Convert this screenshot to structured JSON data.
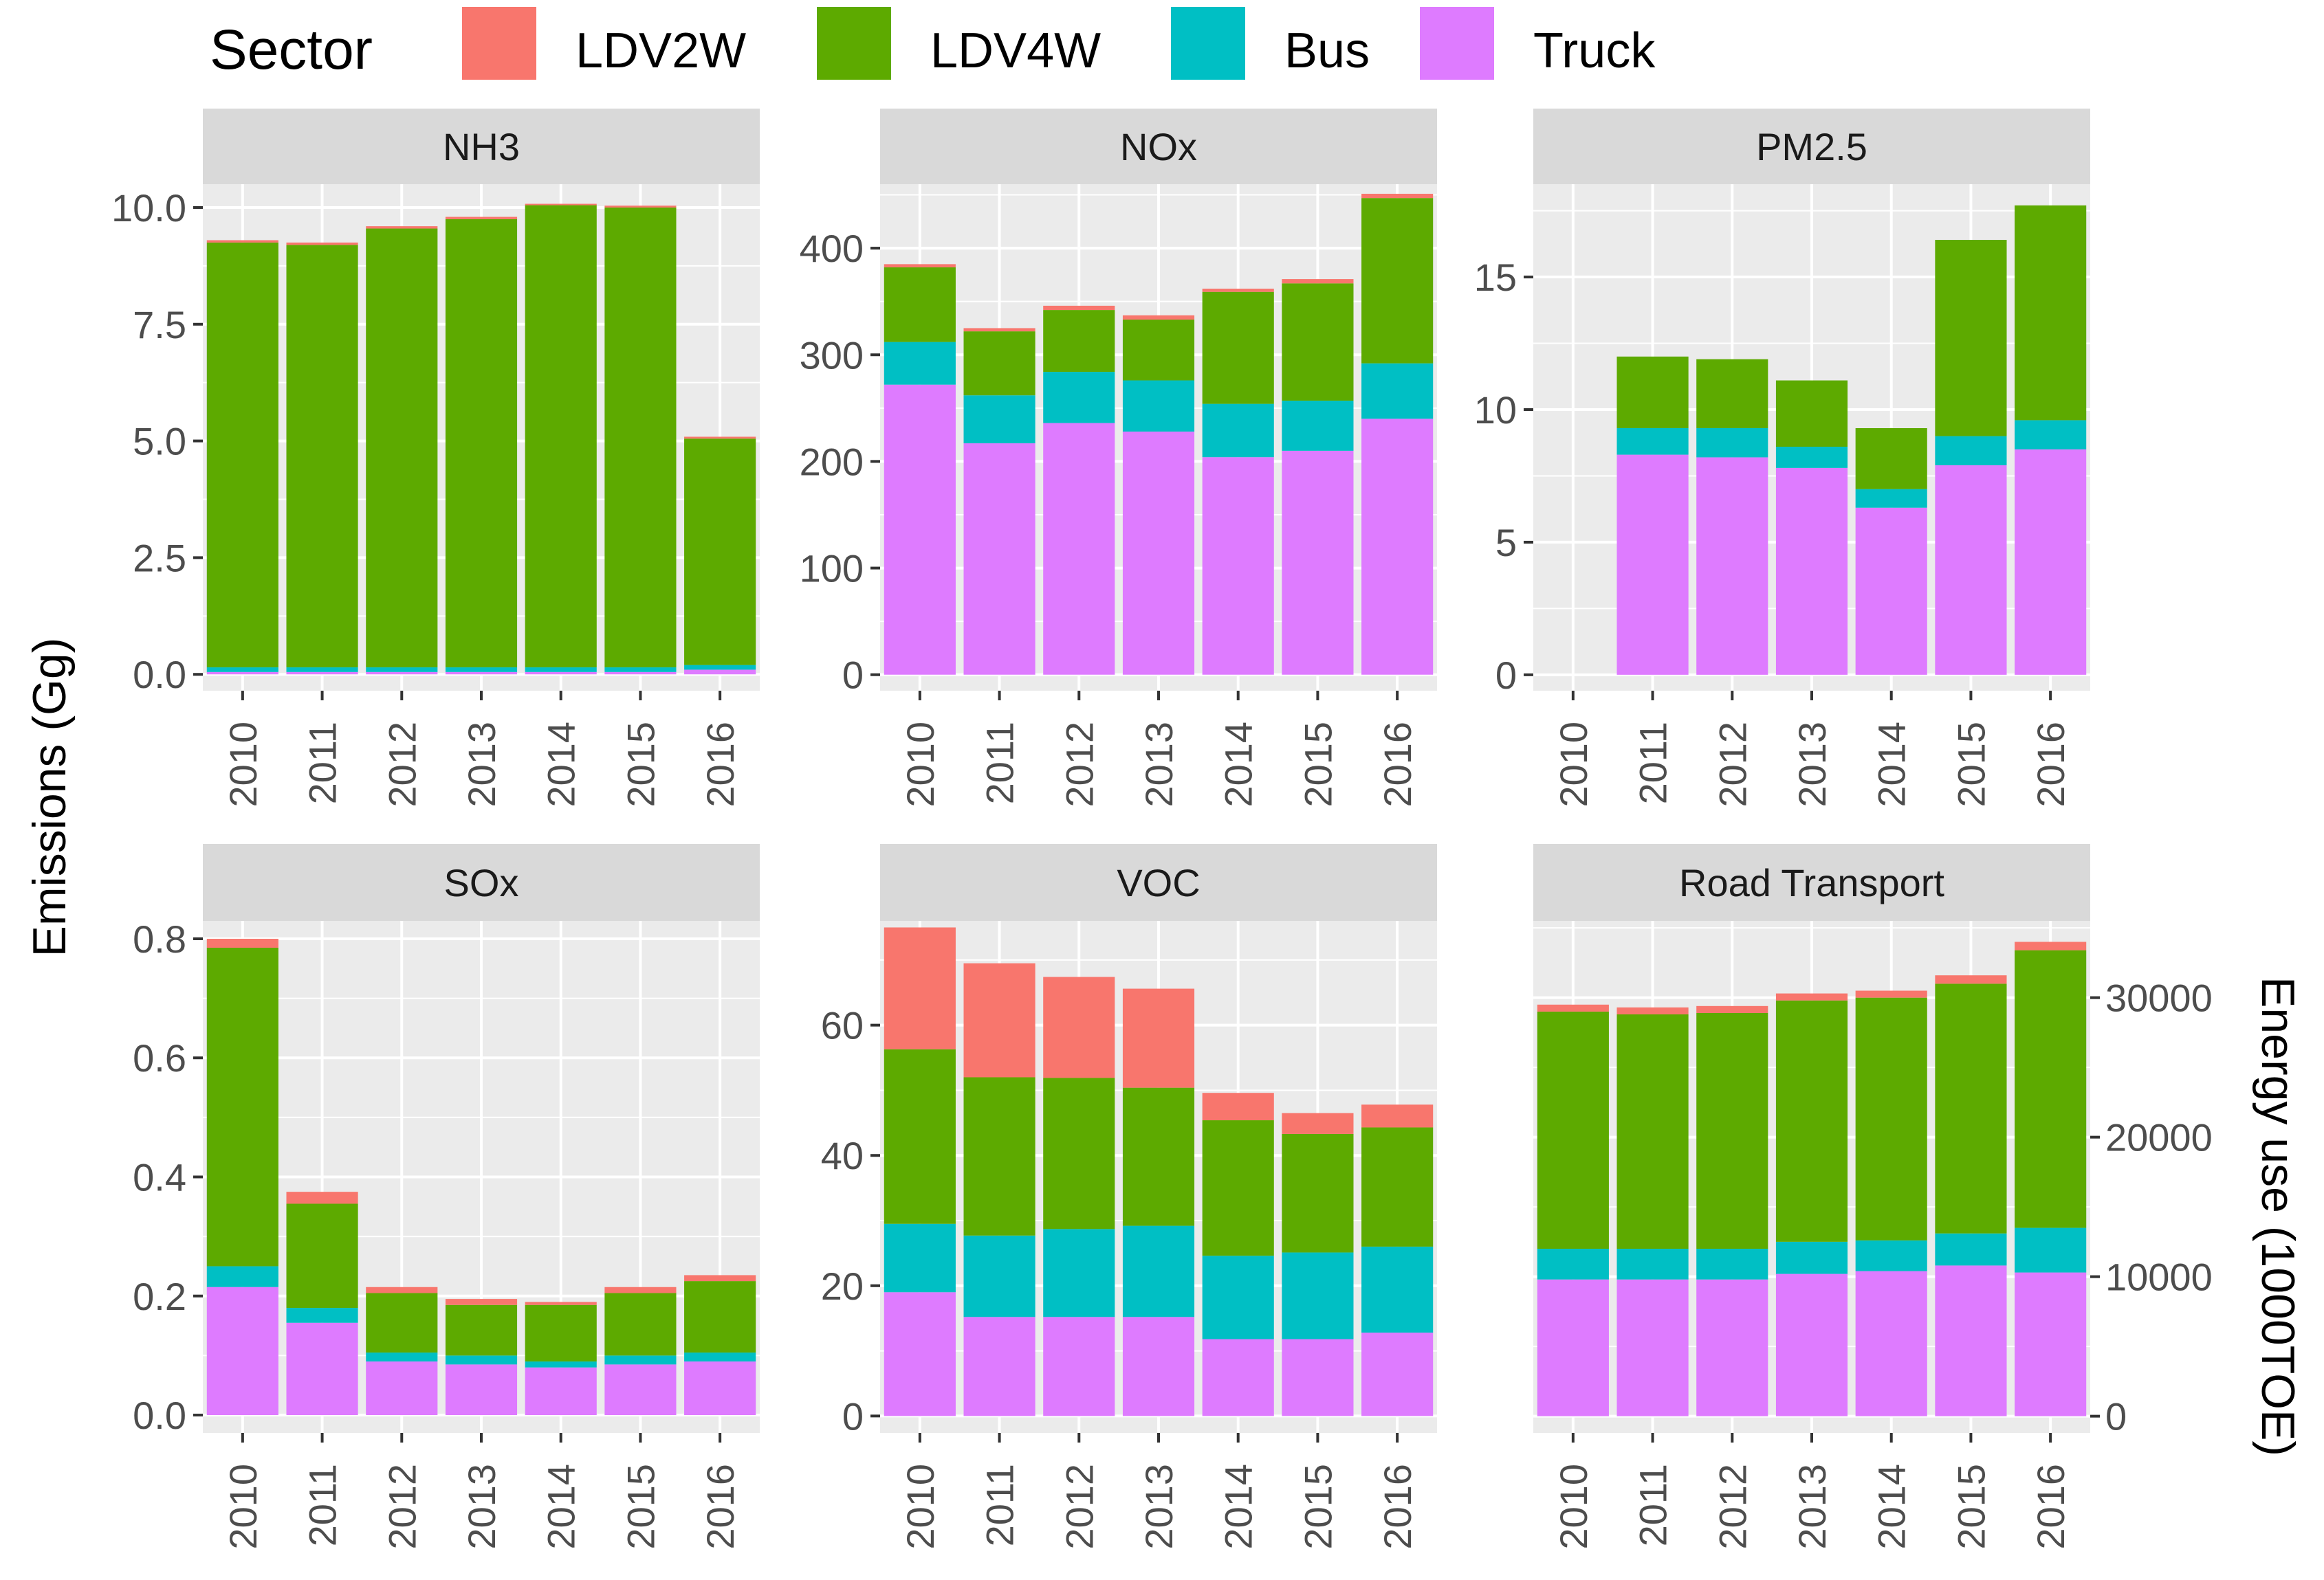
{
  "chart_data": {
    "type": "bar",
    "stacked": true,
    "legend": {
      "title": "Sector",
      "position": "top",
      "items": [
        {
          "name": "LDV2W",
          "color": "#F8766D"
        },
        {
          "name": "LDV4W",
          "color": "#5DAA00"
        },
        {
          "name": "Bus",
          "color": "#00BFC4"
        },
        {
          "name": "Truck",
          "color": "#DE7BFF"
        }
      ]
    },
    "ylabel": "Emissions (Gg)",
    "y2label": "Energy use (1000TOE)",
    "categories": [
      "2010",
      "2011",
      "2012",
      "2013",
      "2014",
      "2015",
      "2016"
    ],
    "stack_order": [
      "Truck",
      "Bus",
      "LDV4W",
      "LDV2W"
    ],
    "panels": [
      {
        "title": "NH3",
        "ylim": [
          -0.35,
          10.5
        ],
        "yticks": [
          0.0,
          2.5,
          5.0,
          7.5,
          10.0
        ],
        "ytick_labels": [
          "0.0",
          "2.5",
          "5.0",
          "7.5",
          "10.0"
        ],
        "series": [
          {
            "name": "Truck",
            "values": [
              0.05,
              0.05,
              0.05,
              0.05,
              0.05,
              0.05,
              0.1
            ]
          },
          {
            "name": "Bus",
            "values": [
              0.1,
              0.1,
              0.1,
              0.1,
              0.1,
              0.1,
              0.1
            ]
          },
          {
            "name": "LDV4W",
            "values": [
              9.1,
              9.05,
              9.4,
              9.6,
              9.9,
              9.85,
              4.85
            ]
          },
          {
            "name": "LDV2W",
            "values": [
              0.05,
              0.05,
              0.05,
              0.05,
              0.03,
              0.04,
              0.04
            ]
          }
        ]
      },
      {
        "title": "NOx",
        "ylim": [
          -15,
          460
        ],
        "yticks": [
          0,
          100,
          200,
          300,
          400
        ],
        "ytick_labels": [
          "0",
          "100",
          "200",
          "300",
          "400"
        ],
        "series": [
          {
            "name": "Truck",
            "values": [
              272,
              217,
              236,
              228,
              204,
              210,
              240
            ]
          },
          {
            "name": "Bus",
            "values": [
              40,
              45,
              48,
              48,
              50,
              47,
              52
            ]
          },
          {
            "name": "LDV4W",
            "values": [
              70,
              60,
              58,
              57,
              105,
              110,
              155
            ]
          },
          {
            "name": "LDV2W",
            "values": [
              3,
              3,
              4,
              4,
              3,
              4,
              4
            ]
          }
        ]
      },
      {
        "title": "PM2.5",
        "ylim": [
          -0.6,
          18.5
        ],
        "yticks": [
          0,
          5,
          10,
          15
        ],
        "ytick_labels": [
          "0",
          "5",
          "10",
          "15"
        ],
        "series": [
          {
            "name": "Truck",
            "values": [
              0,
              8.3,
              8.2,
              7.8,
              6.3,
              7.9,
              8.5
            ]
          },
          {
            "name": "Bus",
            "values": [
              0,
              1.0,
              1.1,
              0.8,
              0.7,
              1.1,
              1.1
            ]
          },
          {
            "name": "LDV4W",
            "values": [
              0,
              2.7,
              2.6,
              2.5,
              2.3,
              7.4,
              8.1
            ]
          },
          {
            "name": "LDV2W",
            "values": [
              0,
              0,
              0,
              0,
              0,
              0,
              0
            ]
          }
        ]
      },
      {
        "title": "SOx",
        "ylim": [
          -0.03,
          0.83
        ],
        "yticks": [
          0.0,
          0.2,
          0.4,
          0.6,
          0.8
        ],
        "ytick_labels": [
          "0.0",
          "0.2",
          "0.4",
          "0.6",
          "0.8"
        ],
        "series": [
          {
            "name": "Truck",
            "values": [
              0.215,
              0.155,
              0.09,
              0.085,
              0.08,
              0.085,
              0.09
            ]
          },
          {
            "name": "Bus",
            "values": [
              0.035,
              0.025,
              0.015,
              0.015,
              0.01,
              0.015,
              0.015
            ]
          },
          {
            "name": "LDV4W",
            "values": [
              0.535,
              0.175,
              0.1,
              0.085,
              0.095,
              0.105,
              0.12
            ]
          },
          {
            "name": "LDV2W",
            "values": [
              0.015,
              0.02,
              0.01,
              0.01,
              0.005,
              0.01,
              0.01
            ]
          }
        ]
      },
      {
        "title": "VOC",
        "ylim": [
          -2.6,
          76
        ],
        "yticks": [
          0,
          20,
          40,
          60
        ],
        "ytick_labels": [
          "0",
          "20",
          "40",
          "60"
        ],
        "series": [
          {
            "name": "Truck",
            "values": [
              19,
              15.2,
              15.2,
              15.2,
              11.8,
              11.8,
              12.8
            ]
          },
          {
            "name": "Bus",
            "values": [
              10.5,
              12.5,
              13.5,
              14,
              12.8,
              13.3,
              13.2
            ]
          },
          {
            "name": "LDV4W",
            "values": [
              26.8,
              24.3,
              23.2,
              21.2,
              20.8,
              18.2,
              18.3
            ]
          },
          {
            "name": "LDV2W",
            "values": [
              18.7,
              17.5,
              15.5,
              15.2,
              4.2,
              3.2,
              3.5
            ]
          }
        ]
      },
      {
        "title": "Road Transport",
        "ylim": [
          -1200,
          35500
        ],
        "yticks": [
          0,
          10000,
          20000,
          30000
        ],
        "ytick_labels": [
          "0",
          "10000",
          "20000",
          "30000"
        ],
        "right_axis": true,
        "series": [
          {
            "name": "Truck",
            "values": [
              9800,
              9800,
              9800,
              10200,
              10400,
              10800,
              10300
            ]
          },
          {
            "name": "Bus",
            "values": [
              2200,
              2200,
              2200,
              2300,
              2200,
              2300,
              3200
            ]
          },
          {
            "name": "LDV4W",
            "values": [
              17000,
              16800,
              16900,
              17300,
              17400,
              17900,
              19900
            ]
          },
          {
            "name": "LDV2W",
            "values": [
              500,
              500,
              500,
              500,
              500,
              600,
              600
            ]
          }
        ]
      }
    ]
  }
}
